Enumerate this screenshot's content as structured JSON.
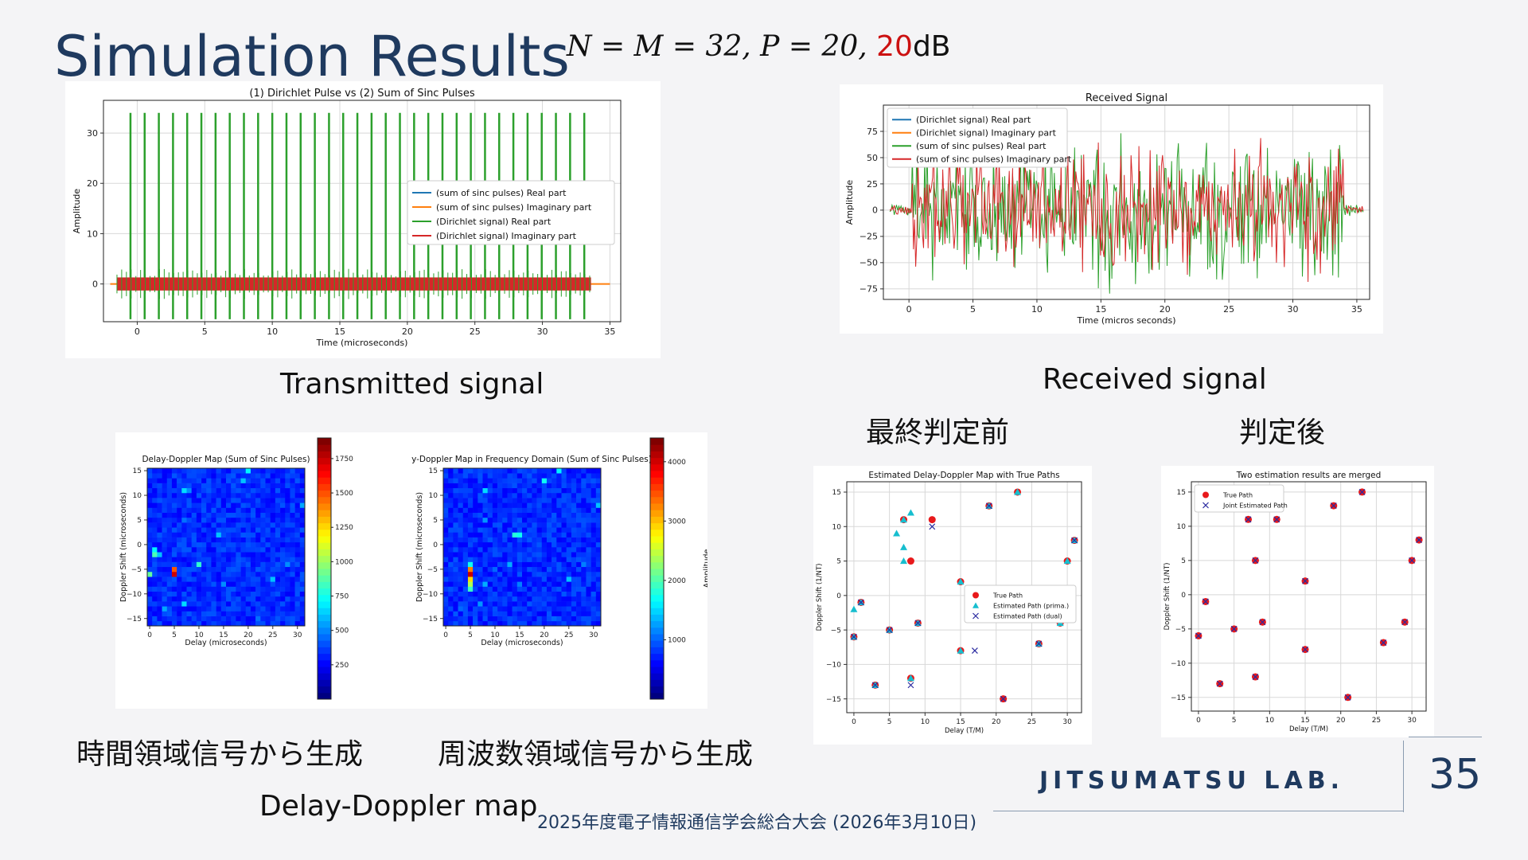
{
  "slide": {
    "title": "Simulation Results",
    "params_prefix": "N = M = 32, P = 20, ",
    "params_snr": "20",
    "params_unit": "dB",
    "page_number": "35",
    "logo_text": "JITSUMATSU LAB.",
    "conference": "2025年度電子情報通信学会総合大会 (2026年3月10日)"
  },
  "captions": {
    "transmitted": "Transmitted signal",
    "received": "Received signal",
    "before_decision": "最終判定前",
    "after_decision": "判定後",
    "time_domain": "時間領域信号から生成",
    "freq_domain": "周波数領域信号から生成",
    "dd_map": "Delay-Doppler map"
  },
  "colors": {
    "blue": "#1f77b4",
    "orange": "#ff7f0e",
    "green": "#2ca02c",
    "red": "#d62728",
    "title": "#1f3a5f"
  },
  "chart_data": [
    {
      "id": "transmitted",
      "type": "line",
      "title": "(1) Dirichlet Pulse vs (2) Sum of Sinc Pulses",
      "xlabel": "Time (microseconds)",
      "ylabel": "Amplitude",
      "xlim": [
        -2.5,
        35.8
      ],
      "ylim": [
        -7.5,
        36.5
      ],
      "xticks": [
        0,
        5,
        10,
        15,
        20,
        25,
        30,
        35
      ],
      "yticks": [
        0,
        10,
        20,
        30
      ],
      "grid": true,
      "legend": [
        "(sum of sinc pulses) Real part",
        "(sum of sinc pulses) Imaginary part",
        "(Dirichlet signal) Real part",
        "(Dirichlet signal) Imaginary part"
      ],
      "legend_colors": [
        "#1f77b4",
        "#ff7f0e",
        "#2ca02c",
        "#d62728"
      ],
      "legend_loc": "center-right",
      "pulse_count": 33,
      "pulse_start": -0.5,
      "pulse_spacing": 1.05,
      "pulse_peak": 34,
      "pulse_min": -7,
      "signal_range": [
        -1.5,
        33.6
      ],
      "tail_range": [
        -2,
        35
      ]
    },
    {
      "id": "received",
      "type": "line",
      "title": "Received Signal",
      "xlabel": "Time (micros seconds)",
      "ylabel": "Amplitude",
      "xlim": [
        -2,
        36
      ],
      "ylim": [
        -85,
        100
      ],
      "xticks": [
        0,
        5,
        10,
        15,
        20,
        25,
        30,
        35
      ],
      "yticks": [
        -75,
        -50,
        -25,
        0,
        25,
        50,
        75
      ],
      "grid": true,
      "legend": [
        "(Dirichlet signal) Real part",
        "(Dirichlet signal) Imaginary part",
        "(sum of sinc pulses) Real part",
        "(sum of sinc pulses) Imaginary part"
      ],
      "legend_colors": [
        "#1f77b4",
        "#ff7f0e",
        "#2ca02c",
        "#d62728"
      ],
      "legend_loc": "upper-left",
      "signal_range": [
        -1.5,
        35.5
      ],
      "amplitude_envelope": 80
    },
    {
      "id": "dd_time",
      "type": "heatmap",
      "title": "Delay-Doppler Map (Sum of Sinc Pulses)",
      "xlabel": "Delay (microseconds)",
      "ylabel": "Doppler Shift (microseconds)",
      "xticks": [
        0,
        5,
        10,
        15,
        20,
        25,
        30
      ],
      "yticks": [
        -15,
        -10,
        -5,
        0,
        5,
        10,
        15
      ],
      "xlim": [
        -0.5,
        31.5
      ],
      "ylim": [
        -16.5,
        15.5
      ],
      "colorbar_ticks": [
        250,
        500,
        750,
        1000,
        1250,
        1500,
        1750
      ],
      "colorbar_range": [
        0,
        1900
      ],
      "peaks": [
        [
          5,
          -6,
          1750
        ],
        [
          5,
          -5,
          1500
        ],
        [
          0,
          -6,
          900
        ],
        [
          1,
          -2,
          850
        ],
        [
          7,
          11,
          650
        ],
        [
          10,
          -4,
          800
        ],
        [
          20,
          15,
          700
        ],
        [
          19,
          13,
          600
        ],
        [
          14,
          2,
          600
        ],
        [
          7,
          -12,
          650
        ],
        [
          31,
          8,
          550
        ],
        [
          25,
          -7,
          600
        ],
        [
          15,
          -8,
          500
        ],
        [
          3,
          -13,
          550
        ],
        [
          22,
          -15,
          450
        ],
        [
          4,
          -14,
          400
        ],
        [
          28,
          -4,
          500
        ],
        [
          7,
          5,
          450
        ],
        [
          8,
          11,
          500
        ],
        [
          12,
          11,
          400
        ],
        [
          1,
          -1,
          700
        ],
        [
          2,
          -2,
          600
        ]
      ]
    },
    {
      "id": "dd_freq",
      "type": "heatmap",
      "title": "Delay-Doppler Map in Frequency Domain (Sum of Sinc Pulses)",
      "xlabel": "Delay (microseconds)",
      "ylabel": "Doppler Shift (microseconds)",
      "xticks": [
        0,
        5,
        10,
        15,
        20,
        25,
        30
      ],
      "yticks": [
        -15,
        -10,
        -5,
        0,
        5,
        10,
        15
      ],
      "xlim": [
        -0.5,
        31.5
      ],
      "ylim": [
        -16.5,
        15.5
      ],
      "colorbar_label": "Amplitude",
      "colorbar_ticks": [
        1000,
        2000,
        3000,
        4000
      ],
      "colorbar_range": [
        0,
        4400
      ],
      "peaks": [
        [
          5,
          -6,
          4100
        ],
        [
          5,
          -5,
          3300
        ],
        [
          5,
          -7,
          2900
        ],
        [
          5,
          -8,
          2400
        ],
        [
          5,
          -9,
          1900
        ],
        [
          5,
          -4,
          1700
        ],
        [
          20,
          13,
          1700
        ],
        [
          23,
          15,
          1600
        ],
        [
          8,
          11,
          1500
        ],
        [
          14,
          2,
          1800
        ],
        [
          15,
          2,
          1700
        ],
        [
          31,
          8,
          1400
        ],
        [
          25,
          -7,
          1400
        ],
        [
          8,
          -8,
          1300
        ],
        [
          13,
          -4,
          1300
        ],
        [
          8,
          5,
          1200
        ],
        [
          15,
          -8,
          1100
        ],
        [
          7,
          -12,
          1200
        ],
        [
          3,
          -13,
          1000
        ],
        [
          22,
          -15,
          1000
        ],
        [
          28,
          -4,
          1100
        ],
        [
          10,
          -5,
          1000
        ],
        [
          4,
          -14,
          900
        ]
      ]
    },
    {
      "id": "estimated_before",
      "type": "scatter",
      "title": "Estimated Delay-Doppler Map with True Paths",
      "xlabel": "Delay (T/M)",
      "ylabel": "Doppler Shift (1/NT)",
      "xlim": [
        -1,
        32
      ],
      "ylim": [
        -17,
        16.5
      ],
      "xticks": [
        0,
        5,
        10,
        15,
        20,
        25,
        30
      ],
      "yticks": [
        -15,
        -10,
        -5,
        0,
        5,
        10,
        15
      ],
      "grid": true,
      "legend": [
        "True Path",
        "Estimated Path (prima.)",
        "Estimated Path (dual)"
      ],
      "legend_loc": "center-right",
      "true_path": [
        [
          0,
          -6
        ],
        [
          1,
          -1
        ],
        [
          3,
          -13
        ],
        [
          5,
          -5
        ],
        [
          7,
          11
        ],
        [
          8,
          5
        ],
        [
          8,
          -12
        ],
        [
          9,
          -4
        ],
        [
          11,
          11
        ],
        [
          15,
          2
        ],
        [
          15,
          -8
        ],
        [
          19,
          13
        ],
        [
          21,
          -15
        ],
        [
          23,
          15
        ],
        [
          26,
          -7
        ],
        [
          29,
          -4
        ],
        [
          30,
          5
        ],
        [
          31,
          8
        ]
      ],
      "estimated_primal": [
        [
          0,
          -6
        ],
        [
          1,
          -1
        ],
        [
          0,
          -2
        ],
        [
          3,
          -13
        ],
        [
          5,
          -5
        ],
        [
          7,
          11
        ],
        [
          6,
          9
        ],
        [
          7,
          7
        ],
        [
          8,
          12
        ],
        [
          7,
          5
        ],
        [
          8,
          -12
        ],
        [
          9,
          -4
        ],
        [
          15,
          2
        ],
        [
          15,
          -8
        ],
        [
          19,
          13
        ],
        [
          23,
          15
        ],
        [
          26,
          -7
        ],
        [
          29,
          -4
        ],
        [
          30,
          5
        ],
        [
          31,
          8
        ]
      ],
      "estimated_dual": [
        [
          0,
          -6
        ],
        [
          1,
          -1
        ],
        [
          3,
          -13
        ],
        [
          5,
          -5
        ],
        [
          8,
          -13
        ],
        [
          9,
          -4
        ],
        [
          11,
          10
        ],
        [
          17,
          -8
        ],
        [
          19,
          13
        ],
        [
          21,
          -15
        ],
        [
          26,
          -7
        ],
        [
          31,
          8
        ]
      ]
    },
    {
      "id": "estimated_after",
      "type": "scatter",
      "title": "Two estimation results are merged",
      "xlabel": "Delay (T/M)",
      "ylabel": "Doppler Shift (1/NT)",
      "xlim": [
        -1,
        32
      ],
      "ylim": [
        -17,
        16.5
      ],
      "xticks": [
        0,
        5,
        10,
        15,
        20,
        25,
        30
      ],
      "yticks": [
        -15,
        -10,
        -5,
        0,
        5,
        10,
        15
      ],
      "grid": true,
      "legend": [
        "True Path",
        "Joint Estimated Path"
      ],
      "legend_loc": "upper-left",
      "true_path": [
        [
          0,
          -6
        ],
        [
          1,
          -1
        ],
        [
          3,
          -13
        ],
        [
          5,
          -5
        ],
        [
          7,
          11
        ],
        [
          8,
          5
        ],
        [
          8,
          -12
        ],
        [
          9,
          -4
        ],
        [
          11,
          11
        ],
        [
          15,
          2
        ],
        [
          15,
          -8
        ],
        [
          19,
          13
        ],
        [
          21,
          -15
        ],
        [
          23,
          15
        ],
        [
          26,
          -7
        ],
        [
          29,
          -4
        ],
        [
          30,
          5
        ],
        [
          31,
          8
        ]
      ],
      "joint_estimated": [
        [
          0,
          -6
        ],
        [
          1,
          -1
        ],
        [
          3,
          -13
        ],
        [
          5,
          -5
        ],
        [
          7,
          11
        ],
        [
          8,
          5
        ],
        [
          8,
          -12
        ],
        [
          9,
          -4
        ],
        [
          11,
          11
        ],
        [
          15,
          2
        ],
        [
          15,
          -8
        ],
        [
          19,
          13
        ],
        [
          21,
          -15
        ],
        [
          23,
          15
        ],
        [
          26,
          -7
        ],
        [
          29,
          -4
        ],
        [
          30,
          5
        ],
        [
          31,
          8
        ]
      ]
    }
  ]
}
